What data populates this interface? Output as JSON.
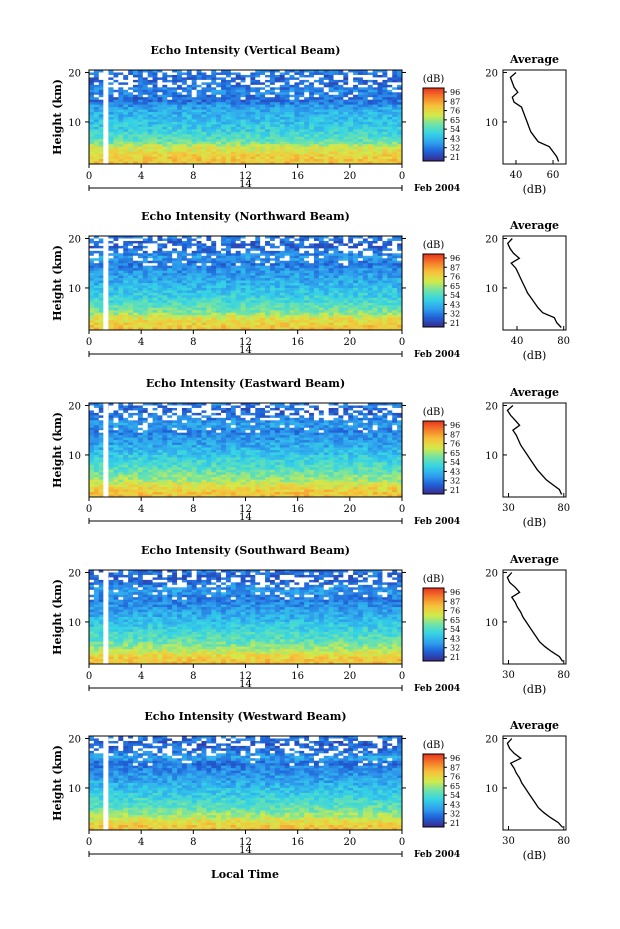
{
  "figure": {
    "xlabel": "Local Time",
    "colorbar_unit": "(dB)",
    "colorbar_ticks": [
      96,
      87,
      76,
      65,
      54,
      43,
      32,
      21
    ],
    "colormap": [
      "#3a2a8a",
      "#1f5fd6",
      "#2fa0ee",
      "#35d3e6",
      "#6fe3a8",
      "#d2ea4a",
      "#f6c33b",
      "#f57f2a",
      "#e8321f"
    ],
    "date_label": "14",
    "month_label": "Feb 2004",
    "average_title": "Average",
    "average_xlabel": "(dB)"
  },
  "chart_data": [
    {
      "type": "heatmap",
      "title": "Echo Intensity (Vertical Beam)",
      "ylabel": "Height (km)",
      "x_ticks": [
        "0",
        "4",
        "8",
        "12",
        "16",
        "20",
        "0"
      ],
      "xlim_hours": [
        0,
        24
      ],
      "y_ticks": [
        "20",
        "10"
      ],
      "ylim_km": [
        1.5,
        20.5
      ],
      "colorbar": {
        "min": 21,
        "max": 96,
        "ticks": [
          96,
          87,
          76,
          65,
          54,
          43,
          32,
          21
        ]
      },
      "profile": {
        "title": "Average",
        "xlabel": "(dB)",
        "x_ticks": [
          "40",
          "60"
        ],
        "xlim": [
          33,
          67
        ],
        "heights": [
          2,
          3,
          4,
          5,
          6,
          7,
          8,
          9,
          10,
          11,
          12,
          13,
          14,
          15,
          16,
          17,
          18,
          19,
          20
        ],
        "values": [
          63,
          62,
          60,
          58,
          52,
          50,
          48,
          47,
          46,
          45,
          44,
          43,
          39,
          38,
          41,
          39,
          38,
          37,
          40
        ]
      }
    },
    {
      "type": "heatmap",
      "title": "Echo Intensity (Northward Beam)",
      "ylabel": "Height (km)",
      "x_ticks": [
        "0",
        "4",
        "8",
        "12",
        "16",
        "20",
        "0"
      ],
      "xlim_hours": [
        0,
        24
      ],
      "y_ticks": [
        "20",
        "10"
      ],
      "ylim_km": [
        1.5,
        20.5
      ],
      "colorbar": {
        "min": 21,
        "max": 96,
        "ticks": [
          96,
          87,
          76,
          65,
          54,
          43,
          32,
          21
        ]
      },
      "profile": {
        "title": "Average",
        "xlabel": "(dB)",
        "x_ticks": [
          "40",
          "80"
        ],
        "xlim": [
          28,
          82
        ],
        "heights": [
          2,
          3,
          4,
          5,
          6,
          7,
          8,
          9,
          10,
          11,
          12,
          13,
          14,
          15,
          16,
          17,
          18,
          19,
          20
        ],
        "values": [
          78,
          74,
          72,
          62,
          58,
          55,
          52,
          49,
          47,
          45,
          43,
          41,
          39,
          35,
          42,
          37,
          34,
          32,
          36
        ]
      }
    },
    {
      "type": "heatmap",
      "title": "Echo Intensity (Eastward Beam)",
      "ylabel": "Height (km)",
      "x_ticks": [
        "0",
        "4",
        "8",
        "12",
        "16",
        "20",
        "0"
      ],
      "xlim_hours": [
        0,
        24
      ],
      "y_ticks": [
        "20",
        "10"
      ],
      "ylim_km": [
        1.5,
        20.5
      ],
      "colorbar": {
        "min": 21,
        "max": 96,
        "ticks": [
          96,
          87,
          76,
          65,
          54,
          43,
          32,
          21
        ]
      },
      "profile": {
        "title": "Average",
        "xlabel": "(dB)",
        "x_ticks": [
          "30",
          "80"
        ],
        "xlim": [
          25,
          82
        ],
        "heights": [
          2,
          3,
          4,
          5,
          6,
          7,
          8,
          9,
          10,
          11,
          12,
          13,
          14,
          15,
          16,
          17,
          18,
          19,
          20
        ],
        "values": [
          78,
          76,
          70,
          64,
          60,
          56,
          53,
          50,
          47,
          44,
          41,
          39,
          37,
          34,
          40,
          36,
          32,
          29,
          34
        ]
      }
    },
    {
      "type": "heatmap",
      "title": "Echo Intensity (Southward Beam)",
      "ylabel": "Height (km)",
      "x_ticks": [
        "0",
        "4",
        "8",
        "12",
        "16",
        "20",
        "0"
      ],
      "xlim_hours": [
        0,
        24
      ],
      "y_ticks": [
        "20",
        "10"
      ],
      "ylim_km": [
        1.5,
        20.5
      ],
      "colorbar": {
        "min": 21,
        "max": 96,
        "ticks": [
          96,
          87,
          76,
          65,
          54,
          43,
          32,
          21
        ]
      },
      "profile": {
        "title": "Average",
        "xlabel": "(dB)",
        "x_ticks": [
          "30",
          "80"
        ],
        "xlim": [
          25,
          82
        ],
        "heights": [
          2,
          3,
          4,
          5,
          6,
          7,
          8,
          9,
          10,
          11,
          12,
          13,
          14,
          15,
          16,
          17,
          18,
          19,
          20
        ],
        "values": [
          79,
          76,
          69,
          63,
          58,
          55,
          52,
          49,
          46,
          43,
          41,
          38,
          36,
          33,
          40,
          36,
          31,
          29,
          33
        ]
      }
    },
    {
      "type": "heatmap",
      "title": "Echo Intensity (Westward Beam)",
      "ylabel": "Height (km)",
      "x_ticks": [
        "0",
        "4",
        "8",
        "12",
        "16",
        "20",
        "0"
      ],
      "xlim_hours": [
        0,
        24
      ],
      "y_ticks": [
        "20",
        "10"
      ],
      "ylim_km": [
        1.5,
        20.5
      ],
      "colorbar": {
        "min": 21,
        "max": 96,
        "ticks": [
          96,
          87,
          76,
          65,
          54,
          43,
          32,
          21
        ]
      },
      "profile": {
        "title": "Average",
        "xlabel": "(dB)",
        "x_ticks": [
          "30",
          "80"
        ],
        "xlim": [
          25,
          82
        ],
        "heights": [
          2,
          3,
          4,
          5,
          6,
          7,
          8,
          9,
          10,
          11,
          12,
          13,
          14,
          15,
          16,
          17,
          18,
          19,
          20
        ],
        "values": [
          79,
          75,
          68,
          62,
          57,
          54,
          51,
          48,
          45,
          42,
          40,
          37,
          35,
          32,
          41,
          35,
          31,
          29,
          33
        ]
      }
    }
  ]
}
